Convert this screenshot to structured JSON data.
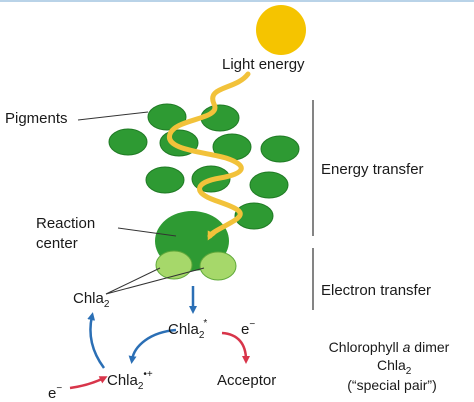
{
  "labels": {
    "light_energy": "Light energy",
    "pigments": "Pigments",
    "energy_transfer": "Energy transfer",
    "reaction_center_1": "Reaction",
    "reaction_center_2": "center",
    "chla2": "Chla",
    "sub2": "2",
    "electron_transfer": "Electron transfer",
    "chla2_star": "Chla",
    "star_mark": "*",
    "e_minus": "e",
    "minus": "−",
    "chla2_cation": "Chla",
    "cation_mark": "•+",
    "acceptor": "Acceptor",
    "dimer_line1_a": "Chlorophyll ",
    "dimer_line1_b": "a",
    "dimer_line1_c": " dimer",
    "dimer_line2": "Chla",
    "dimer_line3": "(“special pair”)"
  },
  "colors": {
    "sun": "#F5C400",
    "light_path": "#F2C23A",
    "pigment": "#2E9A33",
    "pigment_edge": "#1F7A24",
    "special_pair": "#A6D86A",
    "blue_arrow": "#2B6FB5",
    "red_arrow": "#D8354A",
    "divider": "#333333",
    "top_rule": "#B9D3E8"
  }
}
